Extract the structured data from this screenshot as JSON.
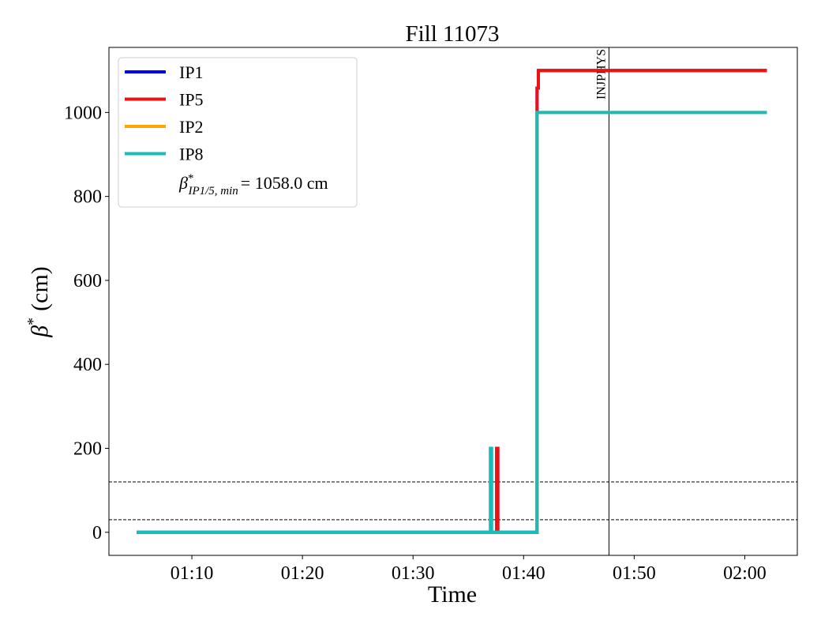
{
  "chart_data": {
    "type": "line",
    "title": "Fill 11073",
    "xlabel": "Time",
    "ylabel": {
      "symbol": "β",
      "sup": "*",
      "text": "(cm)"
    },
    "xlim": [
      "01:02:30",
      "02:04:45"
    ],
    "xticks": [
      "01:10",
      "01:20",
      "01:30",
      "01:40",
      "01:50",
      "02:00"
    ],
    "ylim": [
      -55,
      1155
    ],
    "yticks": [
      0,
      200,
      400,
      600,
      800,
      1000
    ],
    "grid": false,
    "legend": "upper left",
    "legend_note": {
      "symbol": "β",
      "sup": "*",
      "sub": "IP1/5, min",
      "text": "= 1058.0 cm"
    },
    "series": [
      {
        "name": "IP1",
        "color": "#0000ff",
        "x": [
          "01:05:00",
          "01:37:34",
          "01:37:34",
          "01:37:40",
          "01:37:40",
          "01:41:13",
          "01:41:13",
          "01:41:20",
          "01:41:20",
          "02:02:00"
        ],
        "values": [
          0,
          0,
          200,
          200,
          0,
          0,
          1058,
          1058,
          1100,
          1100
        ]
      },
      {
        "name": "IP5",
        "color": "#ee1111",
        "x": [
          "01:05:00",
          "01:37:34",
          "01:37:34",
          "01:37:40",
          "01:37:40",
          "01:41:13",
          "01:41:13",
          "01:41:20",
          "01:41:20",
          "02:02:00"
        ],
        "values": [
          0,
          0,
          200,
          200,
          0,
          0,
          1058,
          1058,
          1100,
          1100
        ]
      },
      {
        "name": "IP2",
        "color": "#ffa500",
        "x": [
          "01:05:00",
          "01:37:00",
          "01:37:00",
          "01:37:06",
          "01:37:06",
          "01:41:13",
          "01:41:13",
          "02:02:00"
        ],
        "values": [
          0,
          0,
          200,
          200,
          0,
          0,
          1000,
          1000
        ]
      },
      {
        "name": "IP8",
        "color": "#17bcbc",
        "x": [
          "01:05:00",
          "01:37:00",
          "01:37:00",
          "01:37:06",
          "01:37:06",
          "01:41:13",
          "01:41:13",
          "02:02:00"
        ],
        "values": [
          0,
          0,
          200,
          200,
          0,
          0,
          1000,
          1000
        ]
      }
    ],
    "hlines": [
      120,
      30
    ],
    "vline": {
      "x": "01:47:43",
      "label": "INJPHYS"
    }
  }
}
